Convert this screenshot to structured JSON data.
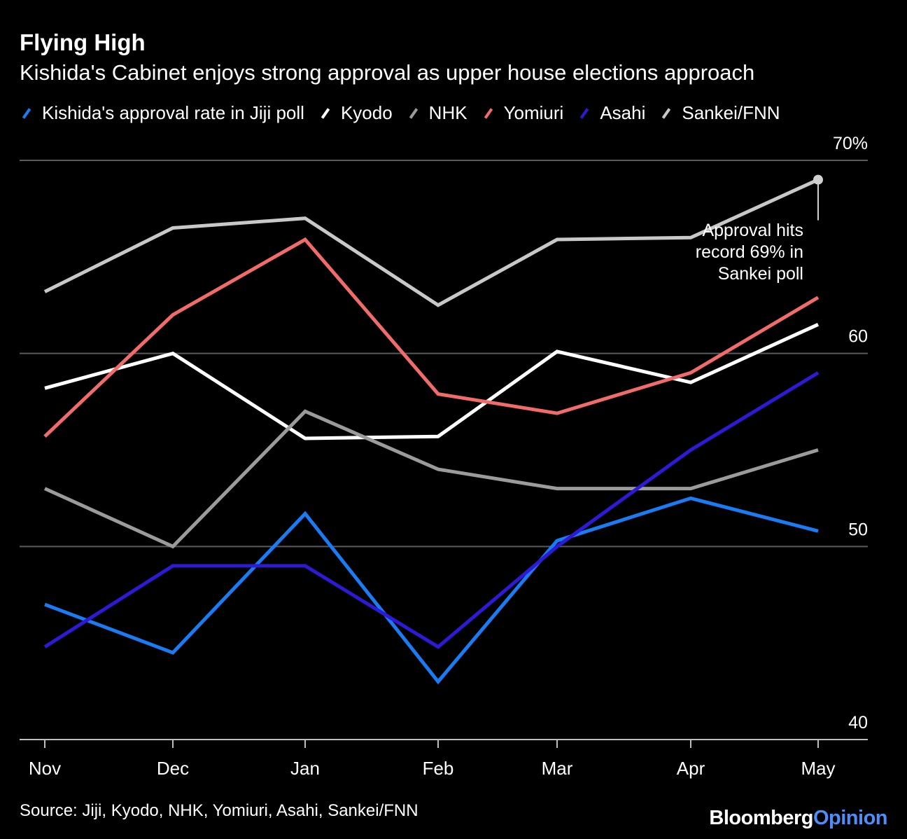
{
  "header": {
    "title": "Flying High",
    "subtitle": "Kishida's Cabinet enjoys strong approval as upper house elections approach"
  },
  "footer": {
    "source": "Source: Jiji, Kyodo, NHK, Yomiuri, Asahi, Sankei/FNN",
    "brand_part1": "Bloomberg",
    "brand_part2": "Opinion"
  },
  "chart_data": {
    "type": "line",
    "title": "Flying High",
    "subtitle": "Kishida's Cabinet enjoys strong approval as upper house elections approach",
    "categories": [
      "Nov",
      "Dec",
      "Jan",
      "Feb",
      "Mar",
      "Apr",
      "May"
    ],
    "ylim": [
      40,
      70
    ],
    "yticks": [
      {
        "value": 70,
        "label": "70%"
      },
      {
        "value": 60,
        "label": "60"
      },
      {
        "value": 50,
        "label": "50"
      },
      {
        "value": 40,
        "label": "40"
      }
    ],
    "series": [
      {
        "name": "Kishida's approval rate in Jiji poll",
        "color": "#1a7cf5",
        "values": [
          47.0,
          44.5,
          51.7,
          43.0,
          50.3,
          52.5,
          50.8
        ]
      },
      {
        "name": "Kyodo",
        "color": "#ffffff",
        "values": [
          58.2,
          60.0,
          55.6,
          55.7,
          60.1,
          58.5,
          61.5
        ]
      },
      {
        "name": "NHK",
        "color": "#9b9b9b",
        "values": [
          53.0,
          50.0,
          57.0,
          54.0,
          53.0,
          53.0,
          55.0
        ]
      },
      {
        "name": "Yomiuri",
        "color": "#f26b6b",
        "values": [
          55.7,
          62.0,
          65.9,
          57.9,
          56.9,
          59.0,
          62.9
        ]
      },
      {
        "name": "Asahi",
        "color": "#2d19d6",
        "values": [
          44.8,
          49.0,
          49.0,
          44.8,
          50.0,
          55.0,
          59.0
        ]
      },
      {
        "name": "Sankei/FNN",
        "color": "#c8c8c8",
        "values": [
          63.2,
          66.5,
          67.0,
          62.5,
          65.9,
          66.0,
          69.0
        ]
      }
    ],
    "annotation": {
      "lines": [
        "Approval hits",
        "record 69% in",
        "Sankei poll"
      ],
      "series": "Sankei/FNN",
      "category": "May",
      "value": 69
    }
  }
}
